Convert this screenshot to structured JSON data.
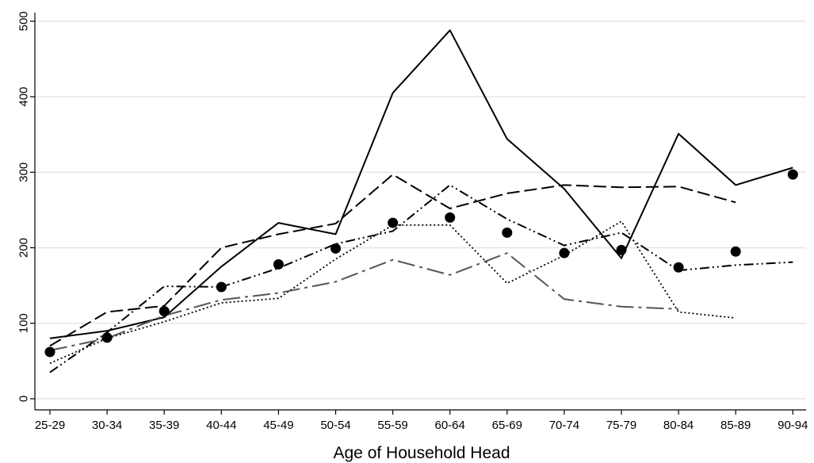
{
  "chart_data": {
    "type": "line",
    "title": "",
    "xlabel": "Age of Household Head",
    "ylabel": "",
    "categories": [
      "25-29",
      "30-34",
      "35-39",
      "40-44",
      "45-49",
      "50-54",
      "55-59",
      "60-64",
      "65-69",
      "70-74",
      "75-79",
      "80-84",
      "85-89",
      "90-94"
    ],
    "ylim": [
      0,
      500
    ],
    "yticks": [
      0,
      100,
      200,
      300,
      400,
      500
    ],
    "grid": true,
    "series": [
      {
        "style": "solid",
        "color": "#000000",
        "values": [
          80,
          90,
          108,
          175,
          233,
          218,
          405,
          488,
          344,
          278,
          186,
          351,
          283,
          306
        ]
      },
      {
        "style": "long-dash",
        "color": "#000000",
        "values": [
          70,
          115,
          123,
          200,
          218,
          232,
          297,
          252,
          272,
          283,
          280,
          281,
          260,
          null
        ]
      },
      {
        "style": "dash-dot-dot",
        "color": "#000000",
        "values": [
          35,
          88,
          149,
          148,
          173,
          205,
          222,
          283,
          238,
          203,
          220,
          170,
          177,
          181
        ]
      },
      {
        "style": "dotted",
        "color": "#000000",
        "values": [
          47,
          80,
          102,
          127,
          133,
          185,
          230,
          230,
          153,
          190,
          235,
          115,
          107,
          null
        ]
      },
      {
        "style": "long-dash-dot",
        "color": "#555555",
        "values": [
          64,
          80,
          110,
          131,
          140,
          155,
          184,
          164,
          193,
          132,
          122,
          119,
          null,
          null
        ]
      },
      {
        "style": "markers",
        "color": "#000000",
        "values": [
          62,
          81,
          116,
          148,
          178,
          199,
          233,
          240,
          220,
          193,
          197,
          174,
          195,
          297
        ]
      }
    ]
  }
}
